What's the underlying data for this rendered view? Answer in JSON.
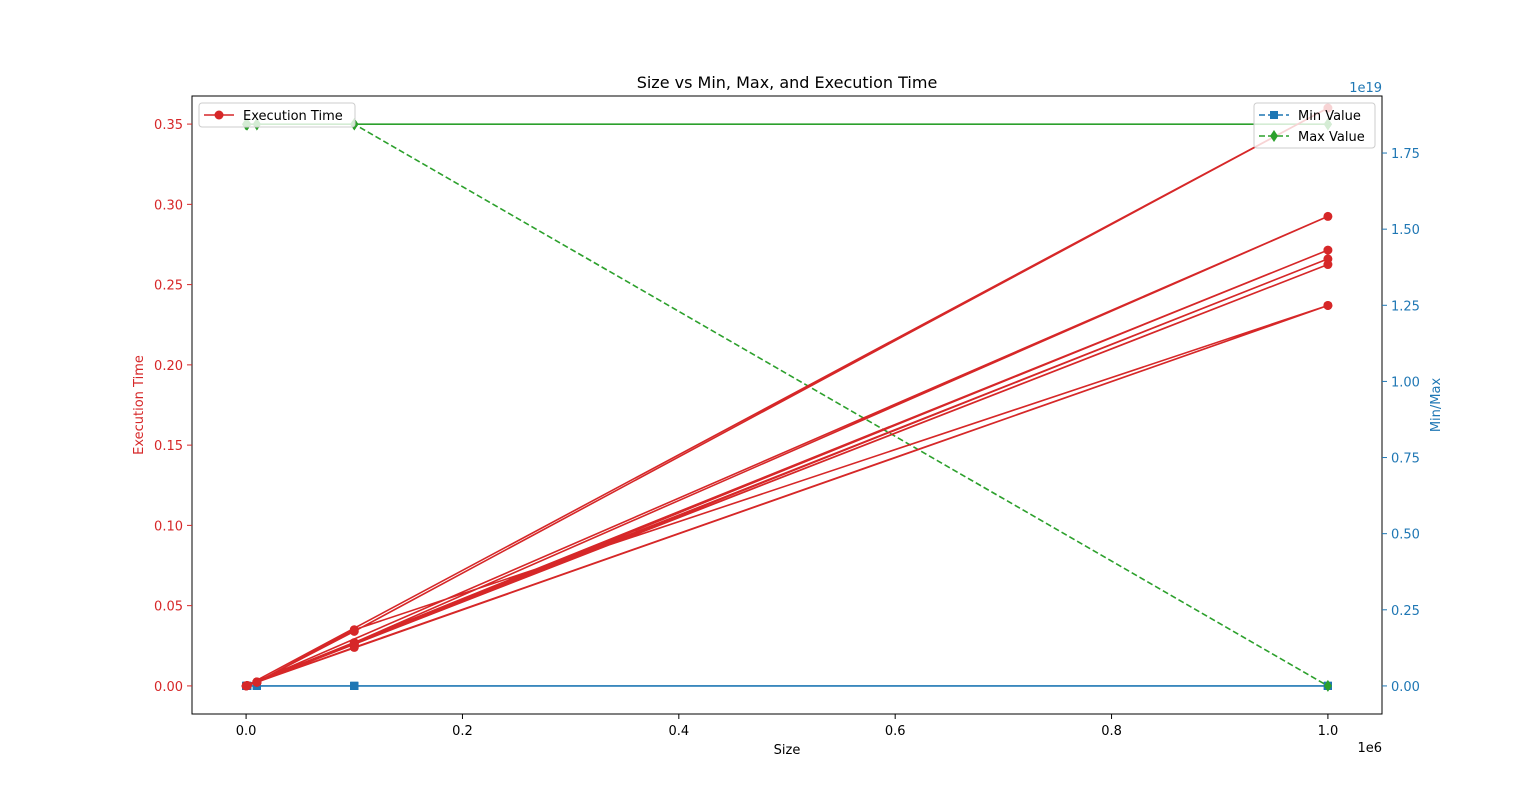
{
  "chart_data": {
    "type": "line",
    "title": "Size vs Min, Max, and Execution Time",
    "xlabel": "Size",
    "ylabel_left": "Execution Time",
    "ylabel_right": "Min/Max",
    "x_offset_label": "1e6",
    "right_offset_label": "1e19",
    "xlim": [
      -50000,
      1050000
    ],
    "ylim_left": [
      -0.0175,
      0.3675
    ],
    "ylim_right": [
      -9.22e+17,
      1.9373e+19
    ],
    "x_ticks": [
      {
        "v": 0,
        "label": "0.0"
      },
      {
        "v": 200000,
        "label": "0.2"
      },
      {
        "v": 400000,
        "label": "0.4"
      },
      {
        "v": 600000,
        "label": "0.6"
      },
      {
        "v": 800000,
        "label": "0.8"
      },
      {
        "v": 1000000,
        "label": "1.0"
      }
    ],
    "left_ticks": [
      {
        "v": 0,
        "label": "0.00"
      },
      {
        "v": 0.05,
        "label": "0.05"
      },
      {
        "v": 0.1,
        "label": "0.10"
      },
      {
        "v": 0.15,
        "label": "0.15"
      },
      {
        "v": 0.2,
        "label": "0.20"
      },
      {
        "v": 0.25,
        "label": "0.25"
      },
      {
        "v": 0.3,
        "label": "0.30"
      },
      {
        "v": 0.35,
        "label": "0.35"
      }
    ],
    "right_ticks": [
      {
        "v": 0,
        "label": "0.00"
      },
      {
        "v": 2.5e+18,
        "label": "0.25"
      },
      {
        "v": 5e+18,
        "label": "0.50"
      },
      {
        "v": 7.5e+18,
        "label": "0.75"
      },
      {
        "v": 1e+19,
        "label": "1.00"
      },
      {
        "v": 1.25e+19,
        "label": "1.25"
      },
      {
        "v": 1.5e+19,
        "label": "1.50"
      },
      {
        "v": 1.75e+19,
        "label": "1.75"
      }
    ],
    "x": [
      100,
      1000,
      10000,
      100000,
      1000000,
      100,
      1000,
      10000,
      100000,
      1000000,
      100,
      1000,
      10000,
      100000,
      1000000,
      100,
      1000,
      10000,
      100000,
      1000000,
      100,
      1000,
      10000,
      100000,
      1000000,
      100,
      1000,
      10000,
      100000,
      1000000,
      100,
      1000,
      10000,
      100000,
      1000000
    ],
    "series": [
      {
        "name": "Execution Time",
        "axis": "left",
        "color": "#d62728",
        "marker": "circle",
        "linestyle": "solid",
        "values": [
          2e-05,
          0.0002,
          0.0025,
          0.034,
          0.36,
          2e-05,
          0.0002,
          0.0024,
          0.027,
          0.2925,
          2e-05,
          0.0002,
          0.0023,
          0.026,
          0.2715,
          2e-05,
          0.0002,
          0.0023,
          0.026,
          0.266,
          2e-05,
          0.0002,
          0.0023,
          0.026,
          0.2625,
          2e-05,
          0.0002,
          0.0023,
          0.024,
          0.237,
          2e-05,
          0.0002,
          0.0023,
          0.035,
          0.237
        ]
      },
      {
        "name": "Min Value",
        "axis": "right",
        "color": "#1f77b4",
        "marker": "square",
        "linestyle": "dashed",
        "values": [
          0,
          0,
          0,
          0,
          0,
          0,
          0,
          0,
          0,
          0,
          0,
          0,
          0,
          0,
          0,
          0,
          0,
          0,
          0,
          0,
          0,
          0,
          0,
          0,
          0,
          0,
          0,
          0,
          0,
          0,
          0,
          0,
          0,
          0,
          0
        ]
      },
      {
        "name": "Max Value",
        "axis": "right",
        "color": "#2ca02c",
        "marker": "diamond",
        "linestyle": "dashed",
        "values": [
          1.8447e+19,
          1.8447e+19,
          1.8447e+19,
          1.8447e+19,
          1.8447e+19,
          1.8447e+19,
          1.8447e+19,
          1.8447e+19,
          1.8447e+19,
          1.8447e+19,
          1.8447e+19,
          1.8447e+19,
          1.8447e+19,
          1.8447e+19,
          1.8447e+19,
          1.8447e+19,
          1.8447e+19,
          1.8447e+19,
          1.8447e+19,
          1.8447e+19,
          1.8447e+19,
          1.8447e+19,
          1.8447e+19,
          1.8447e+19,
          1.8447e+19,
          1.8447e+19,
          1.8447e+19,
          1.8447e+19,
          1.8447e+19,
          1.8447e+19,
          1.8447e+19,
          1.8447e+19,
          1.8447e+19,
          1.8447e+19,
          0
        ]
      }
    ],
    "legend_left": {
      "placement": "upper-left",
      "entries": [
        "Execution Time"
      ]
    },
    "legend_right": {
      "placement": "upper-right",
      "entries": [
        "Min Value",
        "Max Value"
      ]
    },
    "grid": false
  }
}
